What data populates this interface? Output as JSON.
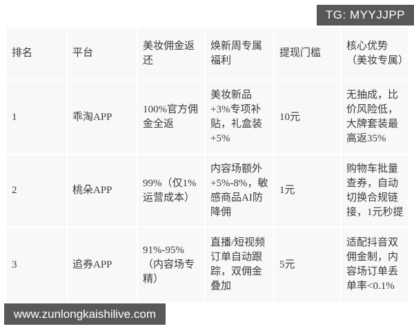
{
  "badge": {
    "label": "TG: MYYJJPP"
  },
  "watermark": {
    "url_text": "www.zunlongkaishilive.com"
  },
  "colors": {
    "badge_bg": "#58585a",
    "watermark_bg": "#59595b",
    "cell_bg": "#f8f8f8",
    "grid_line": "#ffffff",
    "text": "#3a3a3a",
    "inverse_text": "#ffffff"
  },
  "table": {
    "headers": [
      "排名",
      "平台",
      "美妆佣金返还",
      "焕新周专属福利",
      "提现门槛",
      "核心优势（美妆专属）"
    ],
    "rows": [
      [
        "1",
        "乖淘APP",
        "100%官方佣金全返",
        "美妆新品+3%专项补贴，礼盒装+5%",
        "10元",
        "无抽成，比价风险低，大牌套装最高返35%"
      ],
      [
        "2",
        "桃朵APP",
        "99%（仅1%运营成本）",
        "内容场额外+5%-8%，敏感商品AI防降佣",
        "1元",
        "购物车批量查券，自动切换合规链接，1元秒提"
      ],
      [
        "3",
        "追券APP",
        "91%-95%（内容场专精）",
        "直播/短视频订单自动跟踪，双佣金叠加",
        "5元",
        "适配抖音双佣金制，内容场订单丢单率<0.1%"
      ]
    ]
  }
}
